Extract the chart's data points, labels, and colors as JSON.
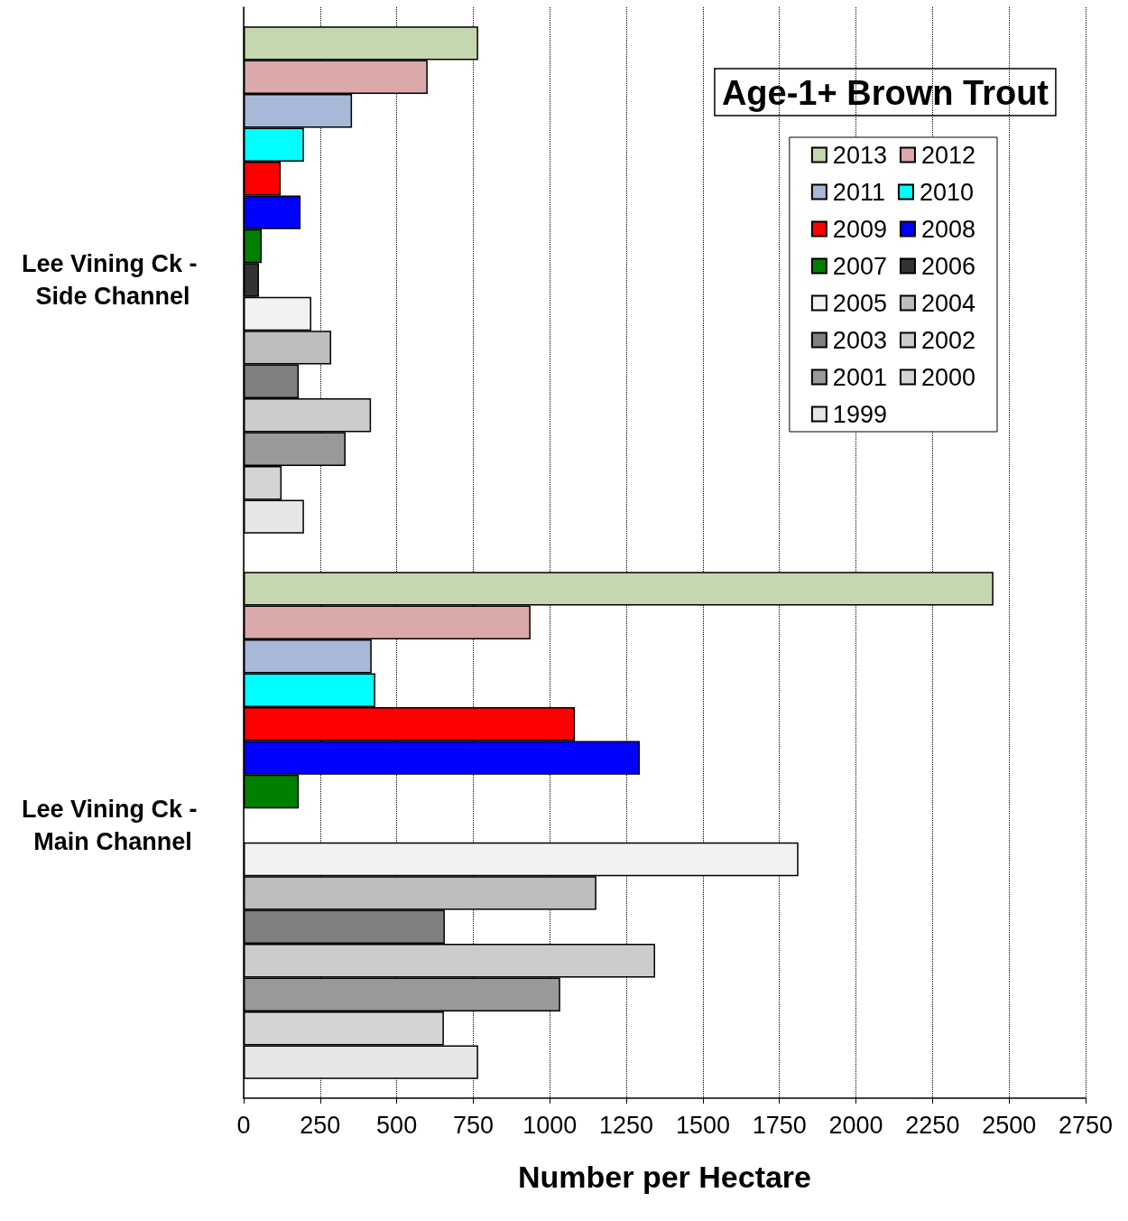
{
  "chart_data": {
    "type": "bar",
    "orientation": "horizontal",
    "title": "Age-1+ Brown Trout",
    "xlabel": "Number per Hectare",
    "categories": [
      "Lee Vining Ck - Side Channel",
      "Lee Vining Ck - Main Channel"
    ],
    "series": [
      {
        "name": "2013",
        "color": "#c4d7ae",
        "values": [
          766,
          2449
        ]
      },
      {
        "name": "2012",
        "color": "#dba9a9",
        "values": [
          601,
          937
        ]
      },
      {
        "name": "2011",
        "color": "#a8b8d8",
        "values": [
          354,
          418
        ]
      },
      {
        "name": "2010",
        "color": "#00ffff",
        "values": [
          197,
          430
        ]
      },
      {
        "name": "2009",
        "color": "#ff0000",
        "values": [
          121,
          1082
        ]
      },
      {
        "name": "2008",
        "color": "#0000ff",
        "values": [
          186,
          1294
        ]
      },
      {
        "name": "2007",
        "color": "#008000",
        "values": [
          59,
          180
        ]
      },
      {
        "name": "2006",
        "color": "#333333",
        "values": [
          50,
          null
        ]
      },
      {
        "name": "2005",
        "color": "#f2f2f2",
        "values": [
          221,
          1812
        ]
      },
      {
        "name": "2004",
        "color": "#bdbdbd",
        "values": [
          286,
          1152
        ]
      },
      {
        "name": "2003",
        "color": "#808080",
        "values": [
          180,
          657
        ]
      },
      {
        "name": "2002",
        "color": "#cccccc",
        "values": [
          416,
          1344
        ]
      },
      {
        "name": "2001",
        "color": "#999999",
        "values": [
          333,
          1034
        ]
      },
      {
        "name": "2000",
        "color": "#d4d4d4",
        "values": [
          124,
          654
        ]
      },
      {
        "name": "1999",
        "color": "#e6e6e6",
        "values": [
          197,
          766
        ]
      }
    ],
    "xlim": [
      0,
      2750
    ],
    "xticks": [
      0,
      250,
      500,
      750,
      1000,
      1250,
      1500,
      1750,
      2000,
      2250,
      2500,
      2750
    ],
    "grid": "x",
    "legend": "top right"
  }
}
